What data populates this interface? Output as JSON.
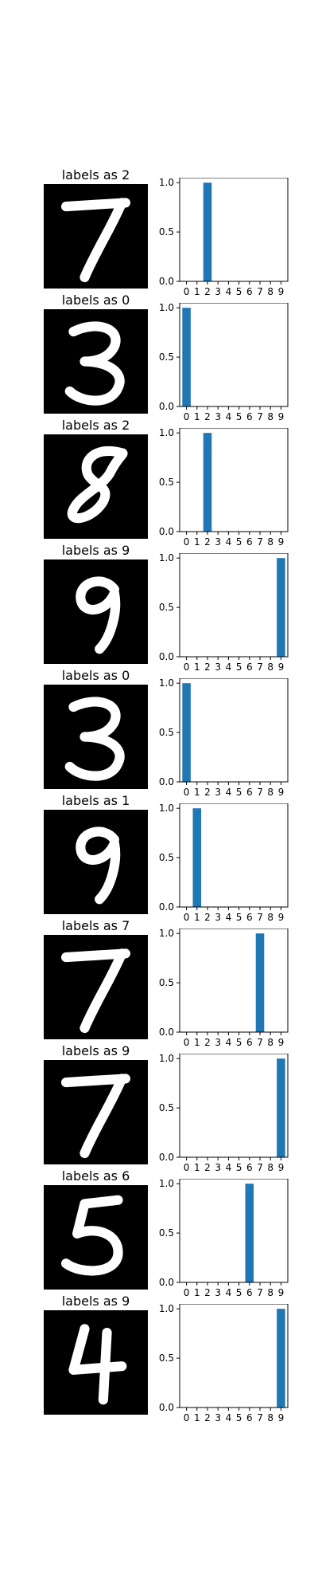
{
  "chart_data": [
    {
      "type": "bar",
      "title": "labels as 2",
      "image": "digit-7",
      "categories": [
        "0",
        "1",
        "2",
        "3",
        "4",
        "5",
        "6",
        "7",
        "8",
        "9"
      ],
      "values": [
        0,
        0,
        1,
        0,
        0,
        0,
        0,
        0,
        0,
        0
      ],
      "ylim": [
        0,
        1.05
      ],
      "yticks": [
        "0.0",
        "0.5",
        "1.0"
      ],
      "ytick_values": [
        0,
        0.5,
        1.0
      ]
    },
    {
      "type": "bar",
      "title": "labels as 0",
      "image": "digit-3",
      "categories": [
        "0",
        "1",
        "2",
        "3",
        "4",
        "5",
        "6",
        "7",
        "8",
        "9"
      ],
      "values": [
        1,
        0,
        0,
        0,
        0,
        0,
        0,
        0,
        0,
        0
      ],
      "ylim": [
        0,
        1.05
      ],
      "yticks": [
        "0.0",
        "0.5",
        "1.0"
      ],
      "ytick_values": [
        0,
        0.5,
        1.0
      ]
    },
    {
      "type": "bar",
      "title": "labels as 2",
      "image": "digit-8",
      "categories": [
        "0",
        "1",
        "2",
        "3",
        "4",
        "5",
        "6",
        "7",
        "8",
        "9"
      ],
      "values": [
        0,
        0,
        1,
        0,
        0,
        0,
        0,
        0,
        0,
        0
      ],
      "ylim": [
        0,
        1.05
      ],
      "yticks": [
        "0.0",
        "0.5",
        "1.0"
      ],
      "ytick_values": [
        0,
        0.5,
        1.0
      ]
    },
    {
      "type": "bar",
      "title": "labels as 9",
      "image": "digit-9",
      "categories": [
        "0",
        "1",
        "2",
        "3",
        "4",
        "5",
        "6",
        "7",
        "8",
        "9"
      ],
      "values": [
        0,
        0,
        0,
        0,
        0,
        0,
        0,
        0,
        0,
        1
      ],
      "ylim": [
        0,
        1.05
      ],
      "yticks": [
        "0.0",
        "0.5",
        "1.0"
      ],
      "ytick_values": [
        0,
        0.5,
        1.0
      ]
    },
    {
      "type": "bar",
      "title": "labels as 0",
      "image": "digit-3",
      "categories": [
        "0",
        "1",
        "2",
        "3",
        "4",
        "5",
        "6",
        "7",
        "8",
        "9"
      ],
      "values": [
        1,
        0,
        0,
        0,
        0,
        0,
        0,
        0,
        0,
        0
      ],
      "ylim": [
        0,
        1.05
      ],
      "yticks": [
        "0.0",
        "0.5",
        "1.0"
      ],
      "ytick_values": [
        0,
        0.5,
        1.0
      ]
    },
    {
      "type": "bar",
      "title": "labels as 1",
      "image": "digit-9",
      "categories": [
        "0",
        "1",
        "2",
        "3",
        "4",
        "5",
        "6",
        "7",
        "8",
        "9"
      ],
      "values": [
        0,
        1,
        0,
        0,
        0,
        0,
        0,
        0,
        0,
        0
      ],
      "ylim": [
        0,
        1.05
      ],
      "yticks": [
        "0.0",
        "0.5",
        "1.0"
      ],
      "ytick_values": [
        0,
        0.5,
        1.0
      ]
    },
    {
      "type": "bar",
      "title": "labels as 7",
      "image": "digit-7",
      "categories": [
        "0",
        "1",
        "2",
        "3",
        "4",
        "5",
        "6",
        "7",
        "8",
        "9"
      ],
      "values": [
        0,
        0,
        0,
        0,
        0,
        0,
        0,
        1,
        0,
        0
      ],
      "ylim": [
        0,
        1.05
      ],
      "yticks": [
        "0.0",
        "0.5",
        "1.0"
      ],
      "ytick_values": [
        0,
        0.5,
        1.0
      ]
    },
    {
      "type": "bar",
      "title": "labels as 9",
      "image": "digit-7",
      "categories": [
        "0",
        "1",
        "2",
        "3",
        "4",
        "5",
        "6",
        "7",
        "8",
        "9"
      ],
      "values": [
        0,
        0,
        0,
        0,
        0,
        0,
        0,
        0,
        0,
        1
      ],
      "ylim": [
        0,
        1.05
      ],
      "yticks": [
        "0.0",
        "0.5",
        "1.0"
      ],
      "ytick_values": [
        0,
        0.5,
        1.0
      ]
    },
    {
      "type": "bar",
      "title": "labels as 6",
      "image": "digit-5",
      "categories": [
        "0",
        "1",
        "2",
        "3",
        "4",
        "5",
        "6",
        "7",
        "8",
        "9"
      ],
      "values": [
        0,
        0,
        0,
        0,
        0,
        0,
        1,
        0,
        0,
        0
      ],
      "ylim": [
        0,
        1.05
      ],
      "yticks": [
        "0.0",
        "0.5",
        "1.0"
      ],
      "ytick_values": [
        0,
        0.5,
        1.0
      ]
    },
    {
      "type": "bar",
      "title": "labels as 9",
      "image": "digit-4",
      "categories": [
        "0",
        "1",
        "2",
        "3",
        "4",
        "5",
        "6",
        "7",
        "8",
        "9"
      ],
      "values": [
        0,
        0,
        0,
        0,
        0,
        0,
        0,
        0,
        0,
        1
      ],
      "ylim": [
        0,
        1.05
      ],
      "yticks": [
        "0.0",
        "0.5",
        "1.0"
      ],
      "ytick_values": [
        0,
        0.5,
        1.0
      ]
    }
  ],
  "colors": {
    "bar": "#1f77b4",
    "digit_background": "#000000",
    "digit_stroke": "#ffffff",
    "axis": "#000000"
  }
}
